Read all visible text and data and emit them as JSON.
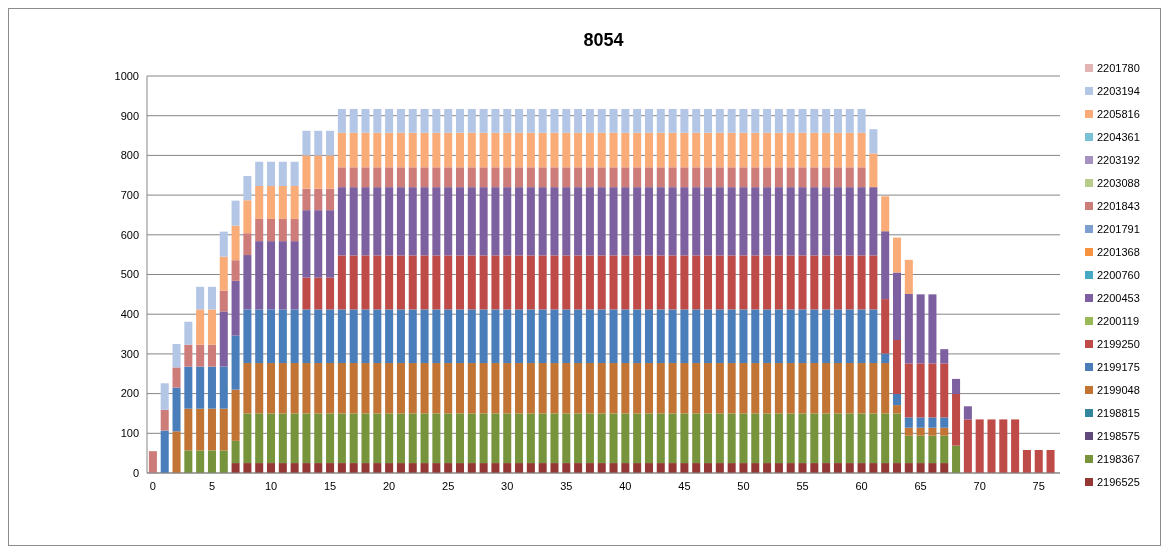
{
  "chart_data": {
    "type": "bar",
    "title": "8054",
    "stacked": true,
    "grid": "y",
    "legend": "right",
    "x": [
      0,
      1,
      2,
      3,
      4,
      5,
      6,
      7,
      8,
      9,
      10,
      11,
      12,
      13,
      14,
      15,
      16,
      17,
      18,
      19,
      20,
      21,
      22,
      23,
      24,
      25,
      26,
      27,
      28,
      29,
      30,
      31,
      32,
      33,
      34,
      35,
      36,
      37,
      38,
      39,
      40,
      41,
      42,
      43,
      44,
      45,
      46,
      47,
      48,
      49,
      50,
      51,
      52,
      53,
      54,
      55,
      56,
      57,
      58,
      59,
      60,
      61,
      62,
      63,
      64,
      65,
      66,
      67,
      68,
      69,
      70,
      71,
      72,
      73,
      74,
      75,
      76
    ],
    "xlim": [
      -0.5,
      76.8
    ],
    "xticks": [
      0,
      5,
      10,
      15,
      20,
      25,
      30,
      35,
      40,
      45,
      50,
      55,
      60,
      65,
      70,
      75
    ],
    "ylim": [
      0,
      1000
    ],
    "yticks": [
      0,
      100,
      200,
      300,
      400,
      500,
      600,
      700,
      800,
      900,
      1000
    ],
    "series": [
      {
        "name": "2196525",
        "color": "#953735",
        "values": [
          null,
          null,
          null,
          null,
          null,
          null,
          null,
          25,
          25,
          25,
          25,
          25,
          25,
          25,
          25,
          25,
          25,
          25,
          25,
          25,
          25,
          25,
          25,
          25,
          25,
          25,
          25,
          25,
          25,
          25,
          25,
          25,
          25,
          25,
          25,
          25,
          25,
          25,
          25,
          25,
          25,
          25,
          25,
          25,
          25,
          25,
          25,
          25,
          25,
          25,
          25,
          25,
          25,
          25,
          25,
          25,
          25,
          25,
          25,
          25,
          25,
          25,
          25,
          25,
          25,
          25,
          25,
          25,
          null,
          null,
          null,
          null,
          null,
          null,
          null,
          null,
          null
        ]
      },
      {
        "name": "2198367",
        "color": "#77933c",
        "values": [
          null,
          null,
          null,
          57,
          57,
          57,
          57,
          56,
          125,
          125,
          125,
          125,
          125,
          125,
          125,
          125,
          125,
          125,
          125,
          125,
          125,
          125,
          125,
          125,
          125,
          125,
          125,
          125,
          125,
          125,
          125,
          125,
          125,
          125,
          125,
          125,
          125,
          125,
          125,
          125,
          125,
          125,
          125,
          125,
          125,
          125,
          125,
          125,
          125,
          125,
          125,
          125,
          125,
          125,
          125,
          125,
          125,
          125,
          125,
          125,
          125,
          125,
          125,
          125,
          69,
          69,
          69,
          69,
          69,
          null,
          null,
          null,
          null,
          null,
          null,
          null,
          null
        ]
      },
      {
        "name": "2198575",
        "color": "#604a7b",
        "values": [
          null,
          null,
          null,
          null,
          null,
          null,
          null,
          null,
          null,
          null,
          null,
          null,
          null,
          null,
          null,
          null,
          null,
          null,
          null,
          null,
          null,
          null,
          null,
          null,
          null,
          null,
          null,
          null,
          null,
          null,
          null,
          null,
          null,
          null,
          null,
          null,
          null,
          null,
          null,
          null,
          null,
          null,
          null,
          null,
          null,
          null,
          null,
          null,
          null,
          null,
          null,
          null,
          null,
          null,
          null,
          null,
          null,
          null,
          null,
          null,
          null,
          null,
          null,
          null,
          null,
          null,
          null,
          null,
          null,
          null,
          null,
          null,
          null,
          null,
          null,
          null,
          null
        ]
      },
      {
        "name": "2198815",
        "color": "#31859c",
        "values": [
          null,
          null,
          null,
          null,
          null,
          null,
          null,
          null,
          null,
          null,
          null,
          null,
          null,
          null,
          null,
          null,
          null,
          null,
          null,
          null,
          null,
          null,
          null,
          null,
          null,
          null,
          null,
          null,
          null,
          null,
          null,
          null,
          null,
          null,
          null,
          null,
          null,
          null,
          null,
          null,
          null,
          null,
          null,
          null,
          null,
          null,
          null,
          null,
          null,
          null,
          null,
          null,
          null,
          null,
          null,
          null,
          null,
          null,
          null,
          null,
          null,
          null,
          null,
          null,
          null,
          null,
          null,
          null,
          null,
          null,
          null,
          null,
          null,
          null,
          null,
          null,
          null
        ]
      },
      {
        "name": "2199048",
        "color": "#c27434",
        "values": [
          null,
          null,
          105,
          105,
          105,
          105,
          105,
          129,
          127,
          127,
          127,
          127,
          127,
          127,
          127,
          127,
          127,
          127,
          127,
          127,
          127,
          127,
          127,
          127,
          127,
          127,
          127,
          127,
          127,
          127,
          127,
          127,
          127,
          127,
          127,
          127,
          127,
          127,
          127,
          127,
          127,
          127,
          127,
          127,
          127,
          127,
          127,
          127,
          127,
          127,
          127,
          127,
          127,
          127,
          127,
          127,
          127,
          127,
          127,
          127,
          127,
          127,
          127,
          21,
          20,
          20,
          20,
          20,
          null,
          null,
          null,
          null,
          null,
          null,
          null,
          null,
          null
        ]
      },
      {
        "name": "2199175",
        "color": "#4a7ebb",
        "values": [
          null,
          107,
          110,
          106,
          106,
          106,
          106,
          136,
          135,
          135,
          135,
          135,
          135,
          135,
          135,
          135,
          135,
          135,
          135,
          135,
          135,
          135,
          135,
          135,
          135,
          135,
          135,
          135,
          135,
          135,
          135,
          135,
          135,
          135,
          135,
          135,
          135,
          135,
          135,
          135,
          135,
          135,
          135,
          135,
          135,
          135,
          135,
          135,
          135,
          135,
          135,
          135,
          135,
          135,
          135,
          135,
          135,
          135,
          135,
          135,
          135,
          135,
          24,
          28,
          26,
          26,
          26,
          26,
          null,
          null,
          null,
          null,
          null,
          null,
          null,
          null,
          null
        ]
      },
      {
        "name": "2199250",
        "color": "#be4b48",
        "values": [
          null,
          null,
          null,
          null,
          null,
          null,
          null,
          null,
          null,
          null,
          null,
          null,
          null,
          80,
          80,
          80,
          136,
          136,
          136,
          136,
          136,
          136,
          136,
          136,
          136,
          136,
          136,
          136,
          136,
          136,
          136,
          136,
          136,
          136,
          136,
          136,
          136,
          136,
          136,
          136,
          136,
          136,
          136,
          136,
          136,
          136,
          136,
          136,
          136,
          136,
          136,
          136,
          136,
          136,
          136,
          136,
          136,
          136,
          136,
          136,
          136,
          136,
          137,
          136,
          136,
          136,
          136,
          136,
          130,
          135,
          135,
          135,
          135,
          135,
          58,
          58,
          58
        ]
      },
      {
        "name": "2200119",
        "color": "#98b954",
        "values": [
          null,
          null,
          null,
          null,
          null,
          null,
          null,
          null,
          null,
          null,
          null,
          null,
          null,
          null,
          null,
          null,
          null,
          null,
          null,
          null,
          null,
          null,
          null,
          null,
          null,
          null,
          null,
          null,
          null,
          null,
          null,
          null,
          null,
          null,
          null,
          null,
          null,
          null,
          null,
          null,
          null,
          null,
          null,
          null,
          null,
          null,
          null,
          null,
          null,
          null,
          null,
          null,
          null,
          null,
          null,
          null,
          null,
          null,
          null,
          null,
          null,
          null,
          null,
          null,
          null,
          null,
          null,
          null,
          null,
          null,
          null,
          null,
          null,
          null,
          null,
          null,
          null
        ]
      },
      {
        "name": "2200453",
        "color": "#7d60a0",
        "values": [
          null,
          null,
          null,
          null,
          null,
          null,
          139,
          138,
          137,
          172,
          172,
          172,
          172,
          170,
          170,
          170,
          172,
          172,
          172,
          172,
          172,
          172,
          172,
          172,
          172,
          172,
          172,
          172,
          172,
          172,
          172,
          172,
          172,
          172,
          172,
          172,
          172,
          172,
          172,
          172,
          172,
          172,
          172,
          172,
          172,
          172,
          172,
          172,
          172,
          172,
          172,
          172,
          172,
          172,
          172,
          172,
          172,
          172,
          172,
          172,
          172,
          172,
          171,
          170,
          175,
          174,
          174,
          36,
          38,
          33,
          null,
          null,
          null,
          null,
          null,
          null,
          null
        ]
      },
      {
        "name": "2200760",
        "color": "#46aac5",
        "values": [
          null,
          null,
          null,
          null,
          null,
          null,
          null,
          null,
          null,
          null,
          null,
          null,
          null,
          null,
          null,
          null,
          null,
          null,
          null,
          null,
          null,
          null,
          null,
          null,
          null,
          null,
          null,
          null,
          null,
          null,
          null,
          null,
          null,
          null,
          null,
          null,
          null,
          null,
          null,
          null,
          null,
          null,
          null,
          null,
          null,
          null,
          null,
          null,
          null,
          null,
          null,
          null,
          null,
          null,
          null,
          null,
          null,
          null,
          null,
          null,
          null,
          null,
          null,
          null,
          null,
          null,
          null,
          null,
          null,
          null,
          null,
          null,
          null,
          null,
          null,
          null,
          null
        ]
      },
      {
        "name": "2201368",
        "color": "#f69240",
        "values": [
          null,
          null,
          null,
          null,
          null,
          null,
          null,
          null,
          null,
          null,
          null,
          null,
          null,
          null,
          null,
          null,
          null,
          null,
          null,
          null,
          null,
          null,
          null,
          null,
          null,
          null,
          null,
          null,
          null,
          null,
          null,
          null,
          null,
          null,
          null,
          null,
          null,
          null,
          null,
          null,
          null,
          null,
          null,
          null,
          null,
          null,
          null,
          null,
          null,
          null,
          null,
          null,
          null,
          null,
          null,
          null,
          null,
          null,
          null,
          null,
          null,
          null,
          null,
          null,
          null,
          null,
          null,
          null,
          null,
          null,
          null,
          null,
          null,
          null,
          null,
          null,
          null
        ]
      },
      {
        "name": "2201791",
        "color": "#7e9fcf",
        "values": [
          null,
          null,
          null,
          null,
          null,
          null,
          null,
          null,
          null,
          null,
          null,
          null,
          null,
          null,
          null,
          null,
          null,
          null,
          null,
          null,
          null,
          null,
          null,
          null,
          null,
          null,
          null,
          null,
          null,
          null,
          null,
          null,
          null,
          null,
          null,
          null,
          null,
          null,
          null,
          null,
          null,
          null,
          null,
          null,
          null,
          null,
          null,
          null,
          null,
          null,
          null,
          null,
          null,
          null,
          null,
          null,
          null,
          null,
          null,
          null,
          null,
          null,
          null,
          null,
          null,
          null,
          null,
          null,
          null,
          null,
          null,
          null,
          null,
          null,
          null,
          null,
          null
        ]
      },
      {
        "name": "2201843",
        "color": "#cd7c7a",
        "values": [
          55,
          52,
          51,
          55,
          55,
          55,
          52,
          52,
          55,
          56,
          56,
          56,
          56,
          54,
          54,
          54,
          50,
          50,
          50,
          50,
          50,
          50,
          50,
          50,
          50,
          50,
          50,
          50,
          50,
          50,
          50,
          50,
          50,
          50,
          50,
          50,
          50,
          50,
          50,
          50,
          50,
          50,
          50,
          50,
          50,
          50,
          50,
          50,
          50,
          50,
          50,
          50,
          50,
          50,
          50,
          50,
          50,
          50,
          50,
          50,
          50,
          null,
          null,
          null,
          null,
          null,
          null,
          null,
          null,
          null,
          null,
          null,
          null,
          null,
          null,
          null,
          null
        ]
      },
      {
        "name": "2203088",
        "color": "#b5cd89",
        "values": [
          null,
          null,
          null,
          null,
          null,
          null,
          null,
          null,
          null,
          null,
          null,
          null,
          null,
          null,
          null,
          null,
          null,
          null,
          null,
          null,
          null,
          null,
          null,
          null,
          null,
          null,
          null,
          null,
          null,
          null,
          null,
          null,
          null,
          null,
          null,
          null,
          null,
          null,
          null,
          null,
          null,
          null,
          null,
          null,
          null,
          null,
          null,
          null,
          null,
          null,
          null,
          null,
          null,
          null,
          null,
          null,
          null,
          null,
          null,
          null,
          null,
          null,
          null,
          null,
          null,
          null,
          null,
          null,
          null,
          null,
          null,
          null,
          null,
          null,
          null,
          null,
          null
        ]
      },
      {
        "name": "2203192",
        "color": "#a692c0",
        "values": [
          null,
          null,
          null,
          null,
          null,
          null,
          null,
          null,
          null,
          null,
          null,
          null,
          null,
          null,
          null,
          null,
          null,
          null,
          null,
          null,
          null,
          null,
          null,
          null,
          null,
          null,
          null,
          null,
          null,
          null,
          null,
          null,
          null,
          null,
          null,
          null,
          null,
          null,
          null,
          null,
          null,
          null,
          null,
          null,
          null,
          null,
          null,
          null,
          null,
          null,
          null,
          null,
          null,
          null,
          null,
          null,
          null,
          null,
          null,
          null,
          null,
          null,
          null,
          null,
          null,
          null,
          null,
          null,
          null,
          null,
          null,
          null,
          null,
          null,
          null,
          null,
          null
        ]
      },
      {
        "name": "2204361",
        "color": "#7ac0d6",
        "values": [
          null,
          null,
          null,
          null,
          null,
          null,
          null,
          null,
          null,
          null,
          null,
          null,
          null,
          null,
          null,
          null,
          null,
          null,
          null,
          null,
          null,
          null,
          null,
          null,
          null,
          null,
          null,
          null,
          null,
          null,
          null,
          null,
          null,
          null,
          null,
          null,
          null,
          null,
          null,
          null,
          null,
          null,
          null,
          null,
          null,
          null,
          null,
          null,
          null,
          null,
          null,
          null,
          null,
          null,
          null,
          null,
          null,
          null,
          null,
          null,
          null,
          null,
          null,
          null,
          null,
          null,
          null,
          null,
          null,
          null,
          null,
          null,
          null,
          null,
          null,
          null,
          null
        ]
      },
      {
        "name": "2205816",
        "color": "#f9ab78",
        "values": [
          null,
          null,
          null,
          null,
          89,
          89,
          86,
          87,
          83,
          83,
          83,
          83,
          83,
          84,
          84,
          84,
          87,
          87,
          87,
          87,
          87,
          87,
          87,
          87,
          87,
          87,
          87,
          87,
          87,
          87,
          87,
          87,
          87,
          87,
          87,
          87,
          87,
          87,
          87,
          87,
          87,
          87,
          87,
          87,
          87,
          87,
          87,
          87,
          87,
          87,
          87,
          87,
          87,
          87,
          87,
          87,
          87,
          87,
          87,
          87,
          87,
          85,
          88,
          88,
          86,
          null,
          null,
          null,
          null,
          null,
          null,
          null,
          null,
          null,
          null,
          null,
          null
        ]
      },
      {
        "name": "2203194",
        "color": "#b4c6e6",
        "values": [
          null,
          67,
          59,
          58,
          57,
          57,
          63,
          63,
          61,
          61,
          61,
          61,
          61,
          62,
          62,
          62,
          60,
          60,
          60,
          60,
          60,
          60,
          60,
          60,
          60,
          60,
          60,
          60,
          60,
          60,
          60,
          60,
          60,
          60,
          60,
          60,
          60,
          60,
          60,
          60,
          60,
          60,
          60,
          60,
          60,
          60,
          60,
          60,
          60,
          60,
          60,
          60,
          60,
          60,
          60,
          60,
          60,
          60,
          60,
          60,
          60,
          61,
          null,
          null,
          null,
          null,
          null,
          null,
          null,
          null,
          null,
          null,
          null,
          null,
          null,
          null,
          null
        ]
      },
      {
        "name": "2201780",
        "color": "#e2b4b3",
        "values": [
          null,
          null,
          null,
          null,
          null,
          null,
          null,
          null,
          null,
          null,
          null,
          null,
          null,
          null,
          null,
          null,
          null,
          null,
          null,
          null,
          null,
          null,
          null,
          null,
          null,
          null,
          null,
          null,
          null,
          null,
          null,
          null,
          null,
          null,
          null,
          null,
          null,
          null,
          null,
          null,
          null,
          null,
          null,
          null,
          null,
          null,
          null,
          null,
          null,
          null,
          null,
          null,
          null,
          null,
          null,
          null,
          null,
          null,
          null,
          null,
          null,
          null,
          null,
          null,
          null,
          null,
          null,
          null,
          null,
          null,
          null,
          null,
          null,
          null,
          null,
          null,
          null
        ]
      }
    ]
  }
}
